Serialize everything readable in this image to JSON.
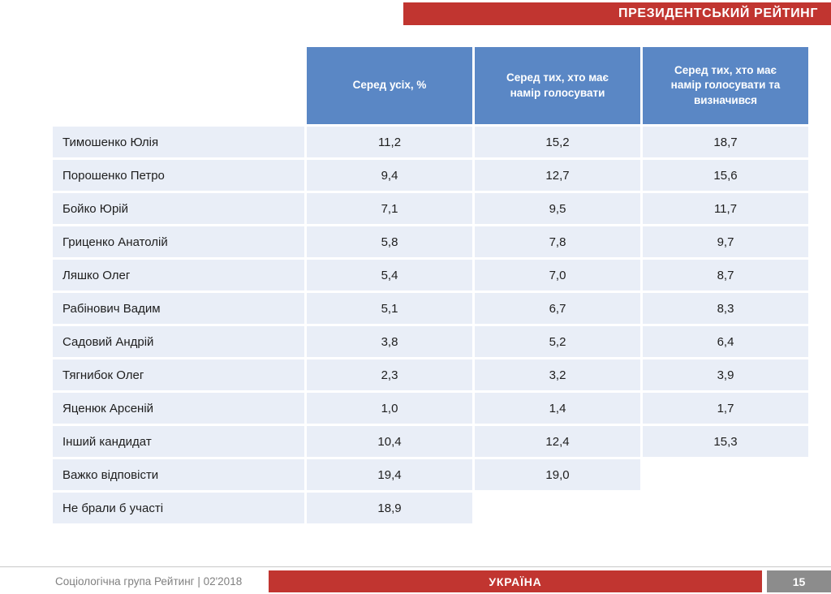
{
  "banner": {
    "title": "ПРЕЗИДЕНТСЬКИЙ РЕЙТИНГ"
  },
  "chart_data": {
    "type": "table",
    "title": "ПРЕЗИДЕНТСЬКИЙ РЕЙТИНГ",
    "columns": [
      "Серед усіх, %",
      "Серед тих, хто має намір голосувати",
      "Серед тих, хто має намір голосувати та визначився"
    ],
    "rows": [
      {
        "name": "Тимошенко Юлія",
        "values": [
          "11,2",
          "15,2",
          "18,7"
        ]
      },
      {
        "name": "Порошенко Петро",
        "values": [
          "9,4",
          "12,7",
          "15,6"
        ]
      },
      {
        "name": "Бойко Юрій",
        "values": [
          "7,1",
          "9,5",
          "11,7"
        ]
      },
      {
        "name": "Гриценко Анатолій",
        "values": [
          "5,8",
          "7,8",
          "9,7"
        ]
      },
      {
        "name": "Ляшко Олег",
        "values": [
          "5,4",
          "7,0",
          "8,7"
        ]
      },
      {
        "name": "Рабінович Вадим",
        "values": [
          "5,1",
          "6,7",
          "8,3"
        ]
      },
      {
        "name": "Садовий Андрій",
        "values": [
          "3,8",
          "5,2",
          "6,4"
        ]
      },
      {
        "name": "Тягнибок Олег",
        "values": [
          "2,3",
          "3,2",
          "3,9"
        ]
      },
      {
        "name": "Яценюк Арсеній",
        "values": [
          "1,0",
          "1,4",
          "1,7"
        ]
      },
      {
        "name": "Інший кандидат",
        "values": [
          "10,4",
          "12,4",
          "15,3"
        ]
      },
      {
        "name": "Важко відповісти",
        "values": [
          "19,4",
          "19,0",
          ""
        ]
      },
      {
        "name": "Не брали б участі",
        "values": [
          "18,9",
          "",
          ""
        ]
      }
    ]
  },
  "footer": {
    "source": "Соціологічна група Рейтинг | 02'2018",
    "region_label": "УКРАЇНА",
    "page_number": "15"
  },
  "colors": {
    "accent_red": "#C13530",
    "header_blue": "#5A87C5",
    "row_bg": "#E9EEF7",
    "page_box_gray": "#8C8C8C"
  }
}
